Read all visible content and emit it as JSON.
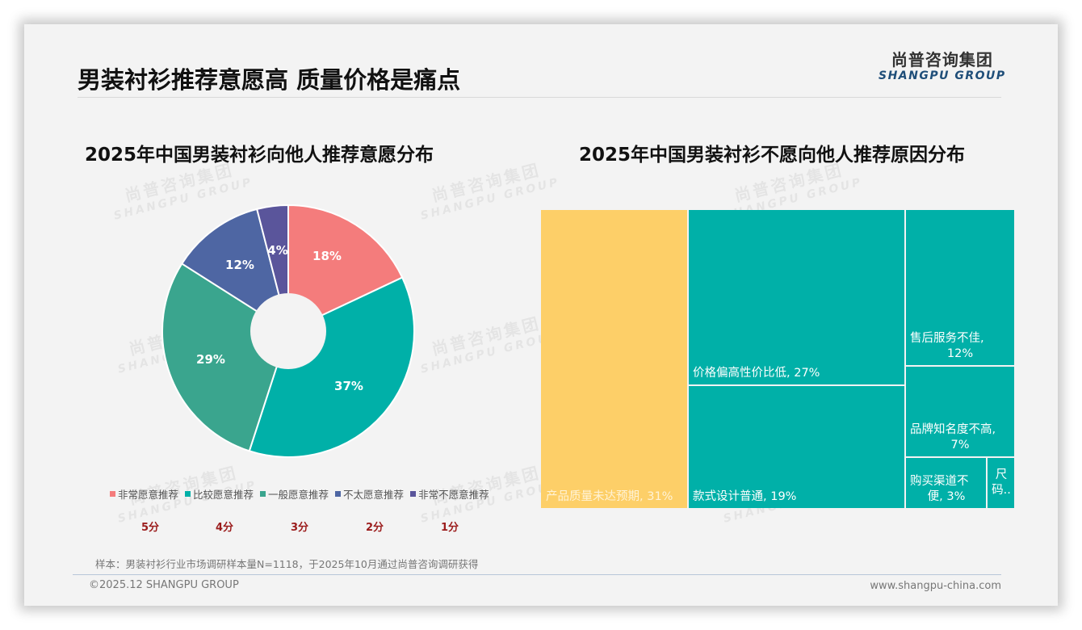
{
  "header": {
    "title": "男装衬衫推荐意愿高 质量价格是痛点",
    "logo_cn": "尚普咨询集团",
    "logo_en": "SHANGPU GROUP"
  },
  "watermark": {
    "cn": "尚普咨询集团",
    "en": "SHANGPU GROUP"
  },
  "left_chart": {
    "title": "2025年中国男装衬衫向他人推荐意愿分布",
    "labels": [
      "18%",
      "37%",
      "29%",
      "12%",
      "4%"
    ],
    "legend": [
      {
        "label": "非常愿意推荐",
        "color": "#f47c7c",
        "score": "5分"
      },
      {
        "label": "比较愿意推荐",
        "color": "#00b0a8",
        "score": "4分"
      },
      {
        "label": "一般愿意推荐",
        "color": "#3aa58e",
        "score": "3分"
      },
      {
        "label": "不太愿意推荐",
        "color": "#4e66a3",
        "score": "2分"
      },
      {
        "label": "非常不愿意推荐",
        "color": "#5a559b",
        "score": "1分"
      }
    ]
  },
  "right_chart": {
    "title": "2025年中国男装衬衫不愿向他人推荐原因分布",
    "tiles": [
      {
        "label": "产品质量未达预期, 31%"
      },
      {
        "label": "价格偏高性价比低, 27%"
      },
      {
        "label": "款式设计普通, 19%"
      },
      {
        "label": "售后服务不佳,",
        "label2": "12%"
      },
      {
        "label": "品牌知名度不高,",
        "label2": "7%"
      },
      {
        "label": "购买渠道不",
        "label2": "便, 3%"
      },
      {
        "label": "尺",
        "label2": "码.."
      }
    ]
  },
  "chart_data": [
    {
      "type": "pie",
      "title": "2025年中国男装衬衫向他人推荐意愿分布",
      "categories": [
        "非常愿意推荐",
        "比较愿意推荐",
        "一般愿意推荐",
        "不太愿意推荐",
        "非常不愿意推荐"
      ],
      "scores": [
        "5分",
        "4分",
        "3分",
        "2分",
        "1分"
      ],
      "values": [
        18,
        37,
        29,
        12,
        4
      ],
      "unit": "%",
      "colors": [
        "#f47c7c",
        "#00b0a8",
        "#3aa58e",
        "#4e66a3",
        "#5a559b"
      ],
      "donut": true,
      "legend_position": "bottom"
    },
    {
      "type": "treemap",
      "title": "2025年中国男装衬衫不愿向他人推荐原因分布",
      "categories": [
        "产品质量未达预期",
        "价格偏高性价比低",
        "款式设计普通",
        "售后服务不佳",
        "品牌知名度不高",
        "购买渠道不便",
        "尺码.."
      ],
      "values": [
        31,
        27,
        19,
        12,
        7,
        3,
        1
      ],
      "unit": "%",
      "colors": [
        "#fdcf68",
        "#00b0a8",
        "#00b0a8",
        "#00b0a8",
        "#00b0a8",
        "#00b0a8",
        "#00b0a8"
      ]
    }
  ],
  "footer": {
    "note": "样本：男装衬衫行业市场调研样本量N=1118，于2025年10月通过尚普咨询调研获得",
    "copyright": "©2025.12 SHANGPU GROUP",
    "website": "www.shangpu-china.com"
  }
}
